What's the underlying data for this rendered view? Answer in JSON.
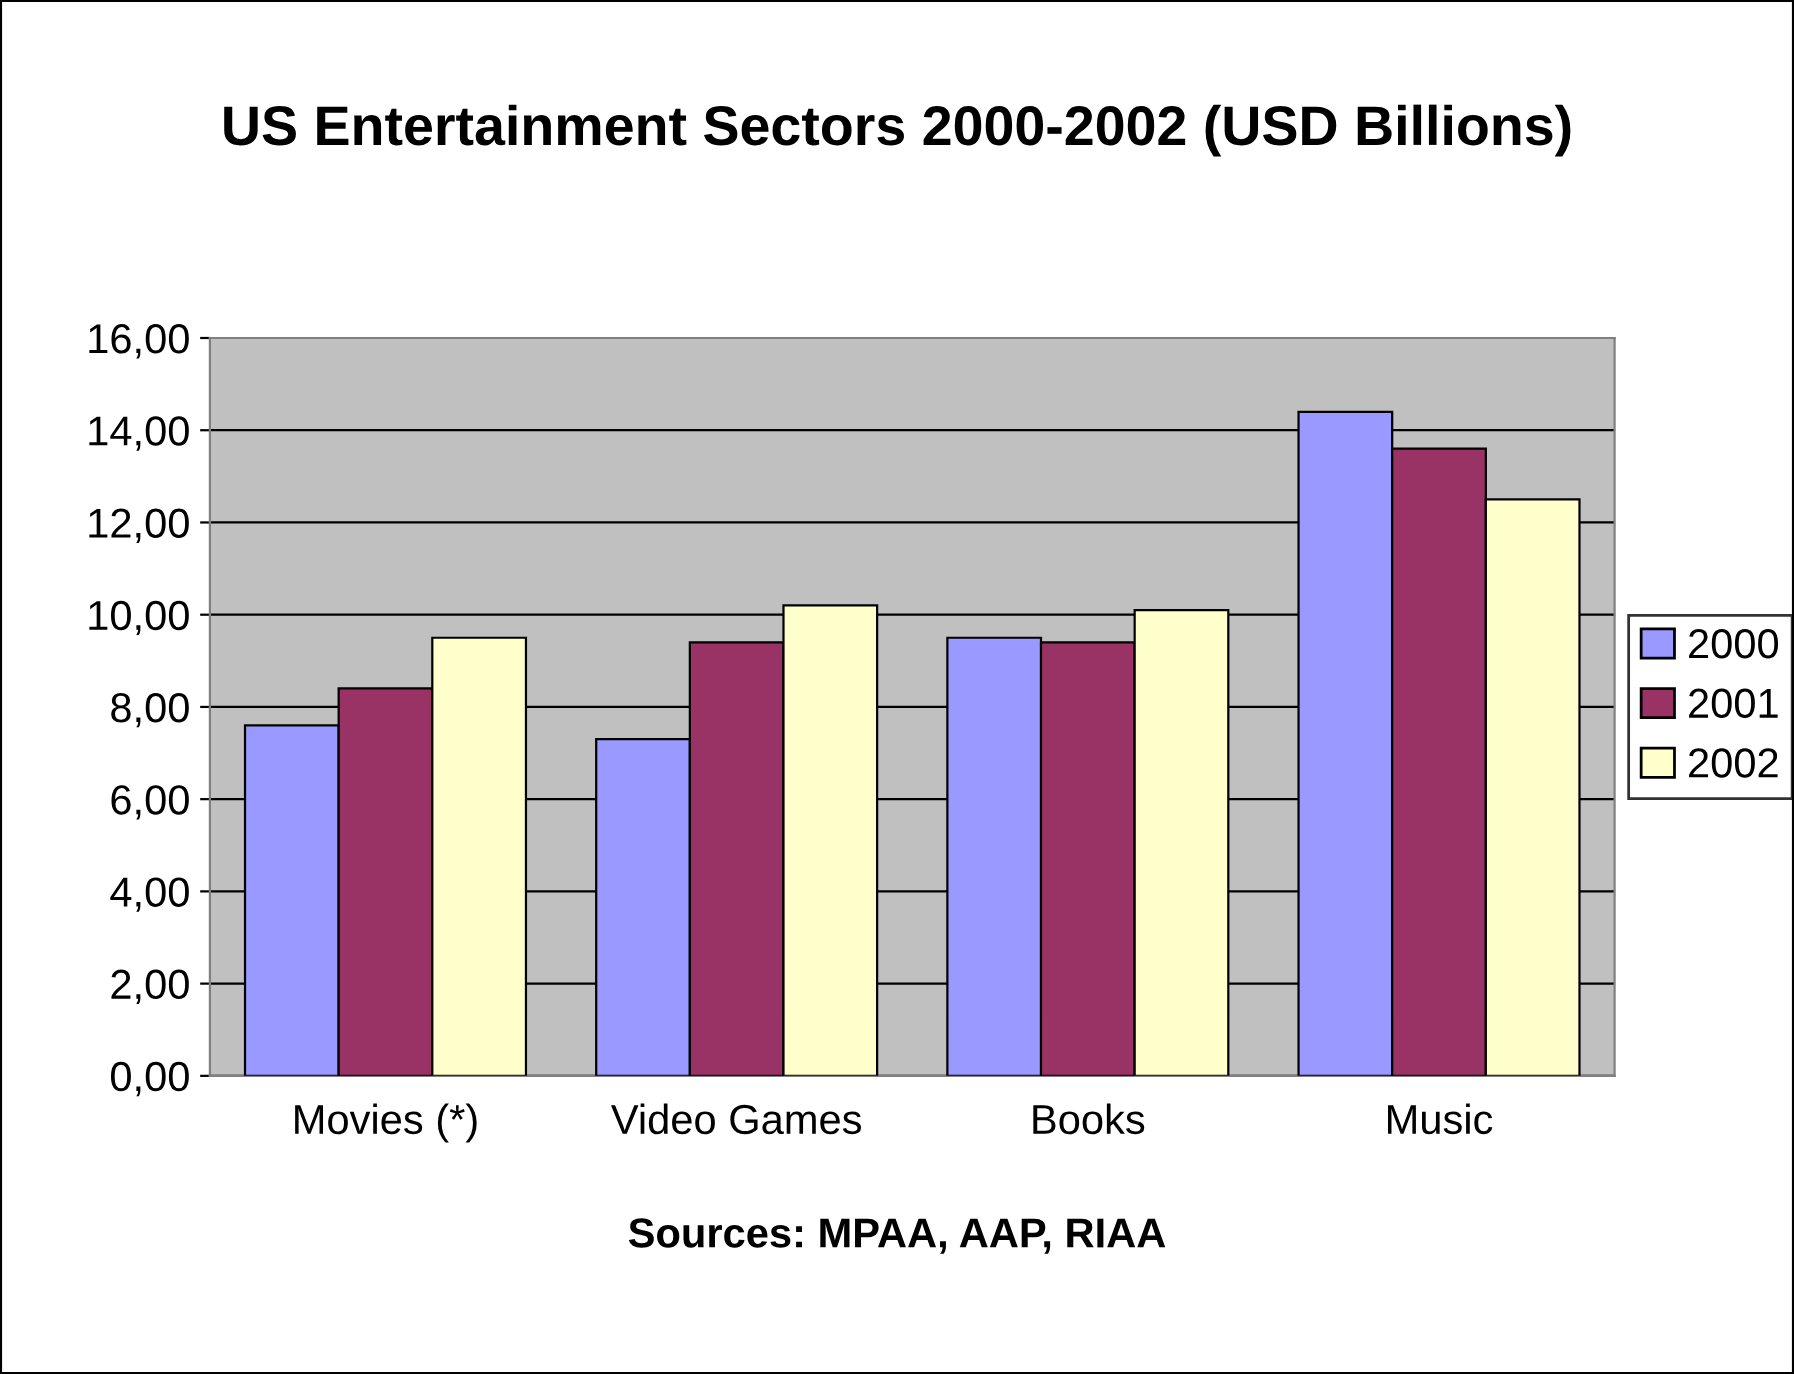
{
  "chart_data": {
    "type": "bar",
    "title": "US Entertainment Sectors 2000-2002 (USD Billions)",
    "categories": [
      "Movies (*)",
      "Video Games",
      "Books",
      "Music"
    ],
    "series": [
      {
        "name": "2000",
        "color": "#9999ff",
        "values": [
          7.6,
          7.3,
          9.5,
          14.4
        ]
      },
      {
        "name": "2001",
        "color": "#993366",
        "values": [
          8.4,
          9.4,
          9.4,
          13.6
        ]
      },
      {
        "name": "2002",
        "color": "#ffffcc",
        "values": [
          9.5,
          10.2,
          10.1,
          12.5
        ]
      }
    ],
    "ylim": [
      0,
      16
    ],
    "yticks": [
      {
        "value": 0,
        "label": "0,00"
      },
      {
        "value": 2,
        "label": "2,00"
      },
      {
        "value": 4,
        "label": "4,00"
      },
      {
        "value": 6,
        "label": "6,00"
      },
      {
        "value": 8,
        "label": "8,00"
      },
      {
        "value": 10,
        "label": "10,00"
      },
      {
        "value": 12,
        "label": "12,00"
      },
      {
        "value": 14,
        "label": "14,00"
      },
      {
        "value": 16,
        "label": "16,00"
      }
    ],
    "grid": "y",
    "legend": "right",
    "annotations": [
      "Sources: MPAA, AAP, RIAA"
    ]
  }
}
